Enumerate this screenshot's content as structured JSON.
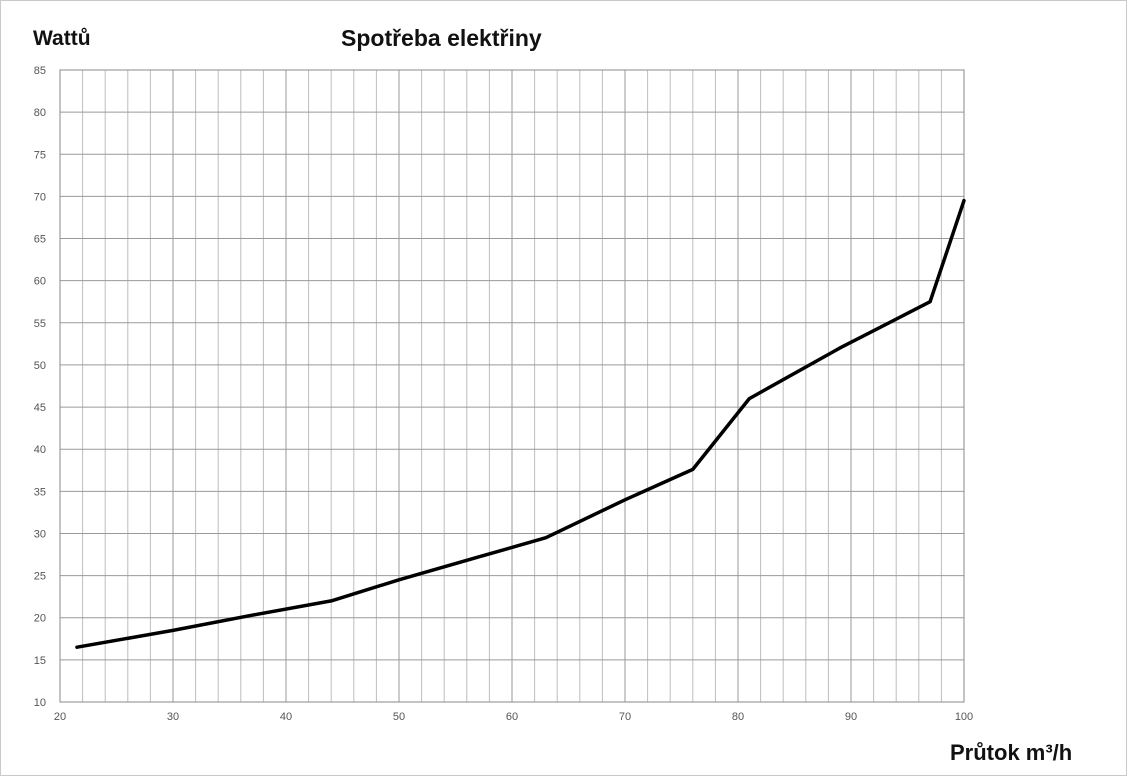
{
  "chart_data": {
    "type": "line",
    "title": "Spotřeba elektřiny",
    "ylabel": "Wattů",
    "xlabel": "Průtok m³/h",
    "xlim": [
      20,
      100
    ],
    "ylim": [
      10,
      85
    ],
    "x_ticks": [
      20,
      30,
      40,
      50,
      60,
      70,
      80,
      90,
      100
    ],
    "y_ticks": [
      10,
      15,
      20,
      25,
      30,
      35,
      40,
      45,
      50,
      55,
      60,
      65,
      70,
      75,
      80,
      85
    ],
    "x_minor_step": 2,
    "grid": true,
    "legend": "none",
    "series": [
      {
        "color": "#000000",
        "x": [
          21.5,
          30,
          37,
          44,
          50,
          57,
          63,
          70,
          76,
          81,
          89,
          97,
          100
        ],
        "y": [
          16.5,
          18.5,
          20.3,
          22,
          24.5,
          27.2,
          29.5,
          34,
          37.6,
          46,
          52,
          57.5,
          69.5
        ]
      }
    ]
  }
}
